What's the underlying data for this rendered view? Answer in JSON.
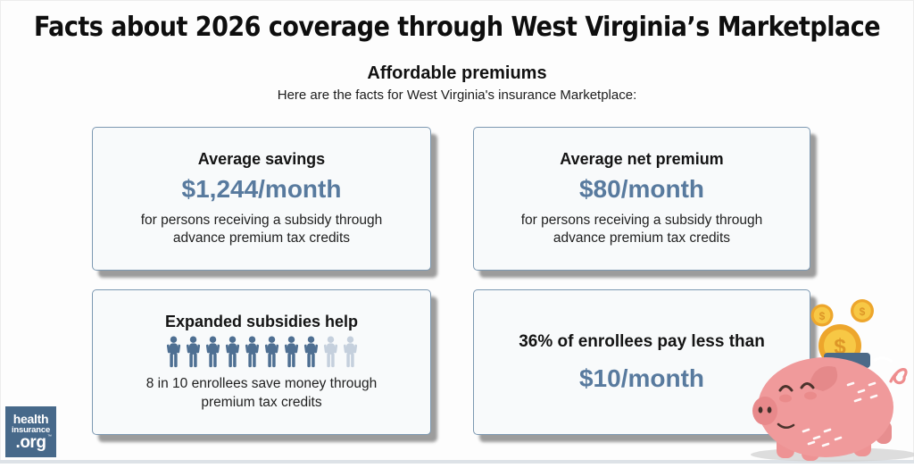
{
  "page": {
    "title": "Facts about 2026 coverage through West Virginia’s Marketplace",
    "subtitle": "Affordable premiums",
    "tagline": "Here are the facts for West Virginia's insurance Marketplace:"
  },
  "cards": [
    {
      "heading": "Average savings",
      "stat": "$1,244/month",
      "description": "for persons receiving a subsidy through advance premium tax credits"
    },
    {
      "heading": "Average net premium",
      "stat": "$80/month",
      "description": "for persons receiving a subsidy through advance premium tax credits"
    },
    {
      "heading": "Expanded subsidies help",
      "description": "8 in 10 enrollees save money through premium tax credits",
      "pictograph": {
        "icon": "person-icon",
        "total": 10,
        "highlighted": 8,
        "highlight_color": "#4e6f92",
        "muted_color": "#c5d0dd"
      }
    },
    {
      "heading": "36% of enrollees pay less than",
      "stat": "$10/month"
    }
  ],
  "logo": {
    "line1": "health",
    "line2": "insurance",
    "line3": ".org",
    "trademark": "™"
  },
  "illustration": {
    "name": "piggy-bank-with-coins",
    "pig_color": "#f09a9b",
    "coin_color": "#f7c845"
  },
  "colors": {
    "stat_text": "#587a9e",
    "card_border": "#7d99b2",
    "card_background": "#f8fafb",
    "card_shadow": "#9c9c9c",
    "logo_background": "#47698a"
  }
}
